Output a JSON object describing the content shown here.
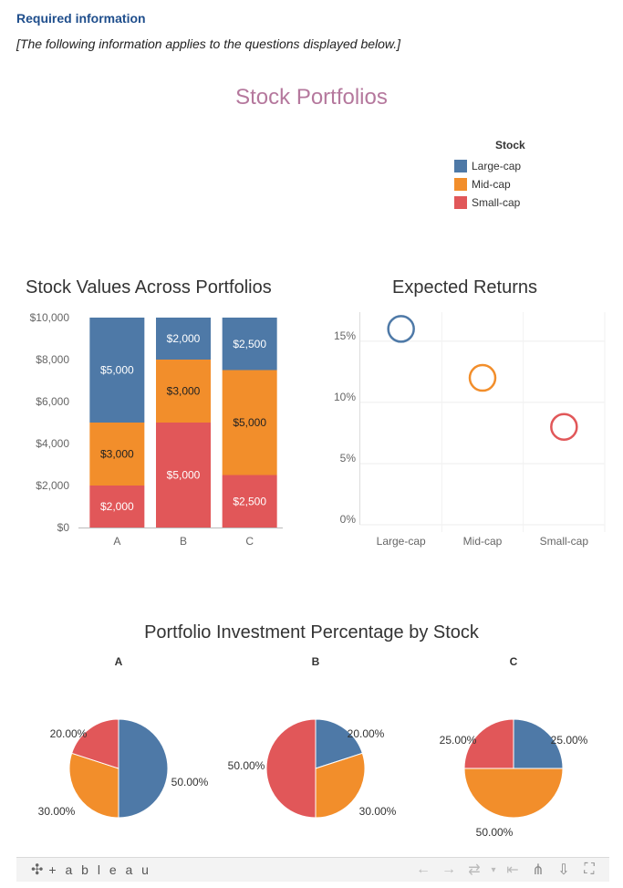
{
  "header": {
    "required_label": "Required information",
    "note": "[The following information applies to the questions displayed below.]"
  },
  "dashboard": {
    "title": "Stock Portfolios",
    "legend": {
      "title": "Stock",
      "items": [
        {
          "label": "Large-cap",
          "color": "#4e79a7"
        },
        {
          "label": "Mid-cap",
          "color": "#f28e2b"
        },
        {
          "label": "Small-cap",
          "color": "#e15759"
        }
      ]
    }
  },
  "chart_data": [
    {
      "type": "bar",
      "stacked": true,
      "title": "Stock Values Across Portfolios",
      "categories": [
        "A",
        "B",
        "C"
      ],
      "series": [
        {
          "name": "Small-cap",
          "color": "#e15759",
          "values": [
            2000,
            5000,
            2500
          ],
          "labels": [
            "$2,000",
            "$5,000",
            "$2,500"
          ]
        },
        {
          "name": "Mid-cap",
          "color": "#f28e2b",
          "values": [
            3000,
            3000,
            5000
          ],
          "labels": [
            "$3,000",
            "$3,000",
            "$5,000"
          ]
        },
        {
          "name": "Large-cap",
          "color": "#4e79a7",
          "values": [
            5000,
            2000,
            2500
          ],
          "labels": [
            "$5,000",
            "$2,000",
            "$2,500"
          ]
        }
      ],
      "ylim": [
        0,
        10000
      ],
      "yticks": [
        0,
        2000,
        4000,
        6000,
        8000,
        10000
      ],
      "ytick_labels": [
        "$0",
        "$2,000",
        "$4,000",
        "$6,000",
        "$8,000",
        "$10,000"
      ]
    },
    {
      "type": "scatter",
      "title": "Expected Returns",
      "categories": [
        "Large-cap",
        "Mid-cap",
        "Small-cap"
      ],
      "values": [
        16,
        12,
        8
      ],
      "colors": [
        "#4e79a7",
        "#f28e2b",
        "#e15759"
      ],
      "ylim": [
        0,
        17
      ],
      "yticks": [
        0,
        5,
        10,
        15
      ],
      "ytick_labels": [
        "0%",
        "5%",
        "10%",
        "15%"
      ],
      "grid": true
    },
    {
      "type": "pie",
      "title": "Portfolio Investment Percentage by Stock",
      "pies": [
        {
          "name": "A",
          "slices": [
            {
              "label": "Large-cap",
              "value": 50,
              "text": "50.00%",
              "color": "#4e79a7"
            },
            {
              "label": "Mid-cap",
              "value": 30,
              "text": "30.00%",
              "color": "#f28e2b"
            },
            {
              "label": "Small-cap",
              "value": 20,
              "text": "20.00%",
              "color": "#e15759"
            }
          ]
        },
        {
          "name": "B",
          "slices": [
            {
              "label": "Large-cap",
              "value": 20,
              "text": "20.00%",
              "color": "#4e79a7"
            },
            {
              "label": "Mid-cap",
              "value": 30,
              "text": "30.00%",
              "color": "#f28e2b"
            },
            {
              "label": "Small-cap",
              "value": 50,
              "text": "50.00%",
              "color": "#e15759"
            }
          ]
        },
        {
          "name": "C",
          "slices": [
            {
              "label": "Large-cap",
              "value": 25,
              "text": "25.00%",
              "color": "#4e79a7"
            },
            {
              "label": "Mid-cap",
              "value": 50,
              "text": "50.00%",
              "color": "#f28e2b"
            },
            {
              "label": "Small-cap",
              "value": 25,
              "text": "25.00%",
              "color": "#e15759"
            }
          ]
        }
      ]
    }
  ],
  "toolbar": {
    "logo_mark": "✣",
    "logo": "+ a b l e a u",
    "undo": "←",
    "redo": "→",
    "revert": "⇄",
    "revert_menu": "▾",
    "reset": "⇤",
    "share": "⋔",
    "download": "⇩",
    "fullscreen": "⛶"
  }
}
